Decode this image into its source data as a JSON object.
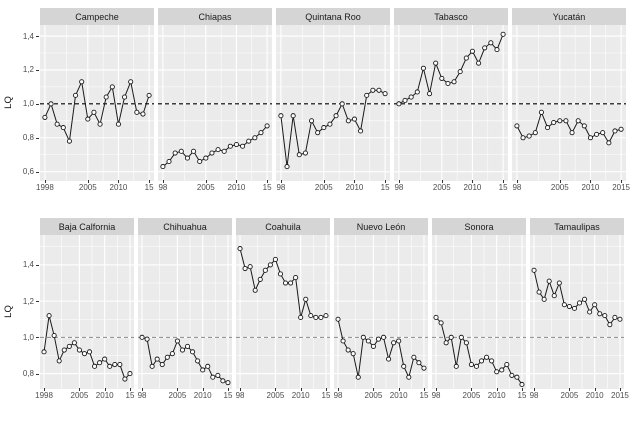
{
  "chart_data": {
    "type": "line",
    "title": "",
    "ylabel": "LQ",
    "x_start": 1998,
    "x_end": 2015,
    "xlim": [
      1997.2,
      2015.8
    ],
    "x_minor_gridlines": [
      2001.5,
      2007.5,
      2012.5
    ],
    "reference_line": 1.0,
    "grid": true,
    "legend": "none",
    "marker": "open-circle",
    "colors": {
      "panel_bg": "#ebebeb",
      "strip_bg": "#d5d5d5",
      "gridline": "#ffffff",
      "series": "#1a1a1a",
      "axis_text": "#4d4d4d",
      "ref_top": "#000000",
      "ref_bottom": "#8a8a8a"
    },
    "rows": [
      {
        "ylabel": "LQ",
        "ylim": [
          0.545,
          1.465
        ],
        "yticks": [
          {
            "v": 1.4,
            "label": "1,4"
          },
          {
            "v": 1.2,
            "label": "1,2"
          },
          {
            "v": 1.0,
            "label": "1,0"
          },
          {
            "v": 0.8,
            "label": "0,8"
          },
          {
            "v": 0.6,
            "label": "0,6"
          }
        ],
        "y_minor_gridlines": [
          0.7,
          0.9,
          1.1,
          1.3
        ],
        "ref_color": "#000000",
        "panels": [
          {
            "title": "Campeche",
            "xticks": [
              {
                "x": 1998,
                "label": "1998"
              },
              {
                "x": 2005,
                "label": "2005"
              },
              {
                "x": 2010,
                "label": "2010"
              },
              {
                "x": 2015,
                "label": "15"
              }
            ],
            "values": [
              0.92,
              1.0,
              0.88,
              0.86,
              0.78,
              1.05,
              1.13,
              0.91,
              0.95,
              0.88,
              1.04,
              1.1,
              0.88,
              1.04,
              1.13,
              0.95,
              0.94,
              1.05
            ]
          },
          {
            "title": "Chiapas",
            "xticks": [
              {
                "x": 1998,
                "label": "98"
              },
              {
                "x": 2005,
                "label": "2005"
              },
              {
                "x": 2010,
                "label": "2010"
              },
              {
                "x": 2015,
                "label": "15"
              }
            ],
            "values": [
              0.63,
              0.66,
              0.71,
              0.72,
              0.68,
              0.72,
              0.66,
              0.68,
              0.71,
              0.73,
              0.72,
              0.75,
              0.76,
              0.75,
              0.78,
              0.8,
              0.83,
              0.87
            ]
          },
          {
            "title": "Quintana Roo",
            "xticks": [
              {
                "x": 1998,
                "label": "98"
              },
              {
                "x": 2005,
                "label": "2005"
              },
              {
                "x": 2010,
                "label": "2010"
              },
              {
                "x": 2015,
                "label": "15"
              }
            ],
            "values": [
              0.93,
              0.63,
              0.93,
              0.7,
              0.71,
              0.9,
              0.83,
              0.86,
              0.88,
              0.93,
              1.0,
              0.9,
              0.91,
              0.84,
              1.05,
              1.08,
              1.08,
              1.06
            ]
          },
          {
            "title": "Tabasco",
            "xticks": [
              {
                "x": 1998,
                "label": "98"
              },
              {
                "x": 2005,
                "label": "2005"
              },
              {
                "x": 2010,
                "label": "2010"
              },
              {
                "x": 2015,
                "label": "15"
              }
            ],
            "values": [
              1.0,
              1.02,
              1.04,
              1.07,
              1.21,
              1.06,
              1.24,
              1.15,
              1.12,
              1.13,
              1.19,
              1.27,
              1.31,
              1.24,
              1.33,
              1.36,
              1.32,
              1.41
            ]
          },
          {
            "title": "Yucatán",
            "xticks": [
              {
                "x": 1998,
                "label": "98"
              },
              {
                "x": 2005,
                "label": "2005"
              },
              {
                "x": 2010,
                "label": "2010"
              },
              {
                "x": 2015,
                "label": "2015"
              }
            ],
            "values": [
              0.87,
              0.8,
              0.81,
              0.83,
              0.95,
              0.86,
              0.89,
              0.9,
              0.9,
              0.83,
              0.9,
              0.87,
              0.8,
              0.82,
              0.83,
              0.77,
              0.84,
              0.85
            ]
          }
        ]
      },
      {
        "ylabel": "LQ",
        "ylim": [
          0.715,
          1.565
        ],
        "yticks": [
          {
            "v": 1.4,
            "label": "1,4"
          },
          {
            "v": 1.2,
            "label": "1,2"
          },
          {
            "v": 1.0,
            "label": "1,0"
          },
          {
            "v": 0.8,
            "label": "0,8"
          }
        ],
        "y_minor_gridlines": [
          0.9,
          1.1,
          1.3,
          1.5
        ],
        "ref_color": "#8a8a8a",
        "panels": [
          {
            "title": "Baja Calfornia",
            "xticks": [
              {
                "x": 1998,
                "label": "1998"
              },
              {
                "x": 2005,
                "label": "2005"
              },
              {
                "x": 2010,
                "label": "2010"
              },
              {
                "x": 2015,
                "label": "15"
              }
            ],
            "values": [
              0.92,
              1.12,
              1.01,
              0.87,
              0.93,
              0.95,
              0.97,
              0.93,
              0.91,
              0.92,
              0.84,
              0.86,
              0.88,
              0.84,
              0.85,
              0.85,
              0.77,
              0.8
            ]
          },
          {
            "title": "Chihuahua",
            "xticks": [
              {
                "x": 1998,
                "label": "98"
              },
              {
                "x": 2005,
                "label": "2005"
              },
              {
                "x": 2010,
                "label": "2010"
              },
              {
                "x": 2015,
                "label": "15"
              }
            ],
            "values": [
              1.0,
              0.99,
              0.84,
              0.88,
              0.85,
              0.89,
              0.91,
              0.98,
              0.93,
              0.95,
              0.92,
              0.87,
              0.82,
              0.84,
              0.78,
              0.79,
              0.76,
              0.75
            ]
          },
          {
            "title": "Coahuila",
            "xticks": [
              {
                "x": 1998,
                "label": "98"
              },
              {
                "x": 2005,
                "label": "2005"
              },
              {
                "x": 2010,
                "label": "2010"
              },
              {
                "x": 2015,
                "label": "15"
              }
            ],
            "values": [
              1.49,
              1.38,
              1.39,
              1.26,
              1.32,
              1.37,
              1.4,
              1.43,
              1.35,
              1.3,
              1.3,
              1.33,
              1.11,
              1.21,
              1.12,
              1.11,
              1.11,
              1.12
            ]
          },
          {
            "title": "Nuevo León",
            "xticks": [
              {
                "x": 1998,
                "label": "98"
              },
              {
                "x": 2005,
                "label": "2005"
              },
              {
                "x": 2010,
                "label": "2010"
              },
              {
                "x": 2015,
                "label": "15"
              }
            ],
            "values": [
              1.1,
              0.98,
              0.93,
              0.91,
              0.78,
              1.0,
              0.98,
              0.95,
              0.99,
              1.0,
              0.88,
              0.97,
              0.98,
              0.84,
              0.78,
              0.89,
              0.86,
              0.83
            ]
          },
          {
            "title": "Sonora",
            "xticks": [
              {
                "x": 1998,
                "label": "98"
              },
              {
                "x": 2005,
                "label": "2005"
              },
              {
                "x": 2010,
                "label": "2010"
              },
              {
                "x": 2015,
                "label": "15"
              }
            ],
            "values": [
              1.11,
              1.08,
              0.97,
              1.0,
              0.84,
              1.0,
              0.97,
              0.85,
              0.84,
              0.87,
              0.89,
              0.87,
              0.81,
              0.82,
              0.85,
              0.79,
              0.78,
              0.74
            ]
          },
          {
            "title": "Tamaulipas",
            "xticks": [
              {
                "x": 1998,
                "label": "98"
              },
              {
                "x": 2005,
                "label": "2005"
              },
              {
                "x": 2010,
                "label": "2010"
              },
              {
                "x": 2015,
                "label": "2015"
              }
            ],
            "values": [
              1.37,
              1.25,
              1.21,
              1.31,
              1.23,
              1.3,
              1.18,
              1.17,
              1.16,
              1.19,
              1.21,
              1.14,
              1.18,
              1.13,
              1.12,
              1.07,
              1.11,
              1.1
            ]
          }
        ]
      }
    ]
  }
}
